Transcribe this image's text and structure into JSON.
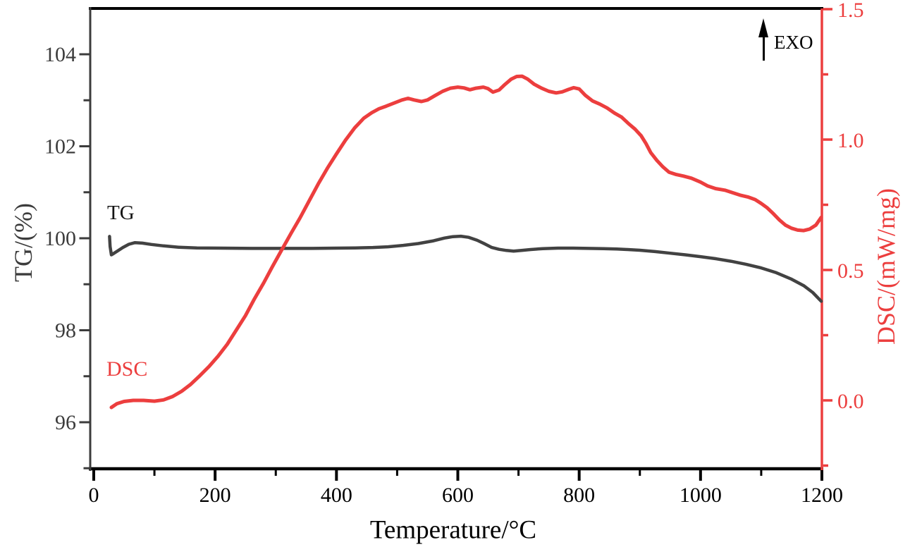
{
  "figure": {
    "background": "#ffffff",
    "annotations": {
      "tg_curve_label": "TG",
      "dsc_curve_label": "DSC",
      "exo_label": "EXO"
    },
    "colors": {
      "tg_curve": "#424242",
      "dsc_curve": "#ec3e3e",
      "left_axis": "#3c3c3c",
      "bottom_axis": "#000000",
      "right_axis": "#ec3e3e"
    }
  },
  "chart_data": {
    "type": "line",
    "title": "",
    "grid": false,
    "legend_position": "none",
    "x_axis": {
      "label": "Temperature/°C",
      "range": [
        0,
        1200
      ],
      "major_ticks": [
        0,
        200,
        400,
        600,
        800,
        1000,
        1200
      ],
      "minor_ticks": [
        100,
        300,
        500,
        700,
        900,
        1100
      ],
      "color": "#000000"
    },
    "left_axis": {
      "label": "TG/(%)",
      "range": [
        94.9,
        105.0
      ],
      "major_ticks": [
        96,
        98,
        100,
        102,
        104
      ],
      "minor_ticks": [
        95,
        97,
        99,
        101,
        103
      ],
      "color": "#3c3c3c"
    },
    "right_axis": {
      "label": "DSC/(mW/mg)",
      "range": [
        -0.26,
        1.5
      ],
      "major_ticks": [
        0.0,
        0.5,
        1.0,
        1.5
      ],
      "major_tick_labels": [
        "0.0",
        "0.5",
        "1.0",
        "1.5"
      ],
      "minor_ticks": [
        -0.25,
        0.25,
        0.75,
        1.25
      ],
      "color": "#ec3e3e"
    },
    "series": [
      {
        "name": "TG",
        "axis": "left",
        "color": "#424242",
        "points": [
          [
            26,
            100.04
          ],
          [
            27,
            99.82
          ],
          [
            29,
            99.64
          ],
          [
            33,
            99.67
          ],
          [
            40,
            99.73
          ],
          [
            48,
            99.8
          ],
          [
            58,
            99.87
          ],
          [
            68,
            99.905
          ],
          [
            80,
            99.895
          ],
          [
            95,
            99.865
          ],
          [
            115,
            99.835
          ],
          [
            140,
            99.805
          ],
          [
            170,
            99.79
          ],
          [
            210,
            99.785
          ],
          [
            260,
            99.78
          ],
          [
            310,
            99.78
          ],
          [
            360,
            99.78
          ],
          [
            400,
            99.785
          ],
          [
            430,
            99.79
          ],
          [
            460,
            99.8
          ],
          [
            485,
            99.815
          ],
          [
            510,
            99.845
          ],
          [
            535,
            99.885
          ],
          [
            560,
            99.945
          ],
          [
            578,
            100.005
          ],
          [
            592,
            100.035
          ],
          [
            605,
            100.045
          ],
          [
            618,
            100.02
          ],
          [
            632,
            99.955
          ],
          [
            645,
            99.875
          ],
          [
            656,
            99.8
          ],
          [
            668,
            99.76
          ],
          [
            680,
            99.735
          ],
          [
            692,
            99.72
          ],
          [
            705,
            99.735
          ],
          [
            720,
            99.755
          ],
          [
            740,
            99.775
          ],
          [
            765,
            99.785
          ],
          [
            790,
            99.785
          ],
          [
            815,
            99.78
          ],
          [
            840,
            99.775
          ],
          [
            862,
            99.765
          ],
          [
            880,
            99.755
          ],
          [
            900,
            99.74
          ],
          [
            925,
            99.71
          ],
          [
            950,
            99.675
          ],
          [
            975,
            99.64
          ],
          [
            1000,
            99.6
          ],
          [
            1025,
            99.555
          ],
          [
            1050,
            99.5
          ],
          [
            1075,
            99.435
          ],
          [
            1100,
            99.355
          ],
          [
            1125,
            99.25
          ],
          [
            1150,
            99.11
          ],
          [
            1170,
            98.97
          ],
          [
            1185,
            98.82
          ],
          [
            1199,
            98.63
          ]
        ]
      },
      {
        "name": "DSC",
        "axis": "right",
        "color": "#ec3e3e",
        "points": [
          [
            29,
            -0.027
          ],
          [
            38,
            -0.013
          ],
          [
            50,
            -0.004
          ],
          [
            65,
            0.0
          ],
          [
            82,
            0.0
          ],
          [
            100,
            -0.003
          ],
          [
            115,
            0.002
          ],
          [
            130,
            0.015
          ],
          [
            145,
            0.035
          ],
          [
            160,
            0.062
          ],
          [
            175,
            0.095
          ],
          [
            190,
            0.13
          ],
          [
            205,
            0.17
          ],
          [
            220,
            0.215
          ],
          [
            235,
            0.27
          ],
          [
            250,
            0.325
          ],
          [
            265,
            0.39
          ],
          [
            280,
            0.45
          ],
          [
            295,
            0.515
          ],
          [
            310,
            0.578
          ],
          [
            325,
            0.64
          ],
          [
            340,
            0.7
          ],
          [
            355,
            0.765
          ],
          [
            370,
            0.83
          ],
          [
            385,
            0.89
          ],
          [
            400,
            0.945
          ],
          [
            415,
            0.998
          ],
          [
            430,
            1.045
          ],
          [
            445,
            1.082
          ],
          [
            458,
            1.103
          ],
          [
            470,
            1.118
          ],
          [
            482,
            1.128
          ],
          [
            495,
            1.14
          ],
          [
            508,
            1.152
          ],
          [
            518,
            1.158
          ],
          [
            528,
            1.152
          ],
          [
            540,
            1.146
          ],
          [
            550,
            1.152
          ],
          [
            562,
            1.168
          ],
          [
            575,
            1.185
          ],
          [
            588,
            1.197
          ],
          [
            600,
            1.201
          ],
          [
            610,
            1.198
          ],
          [
            620,
            1.191
          ],
          [
            630,
            1.197
          ],
          [
            642,
            1.201
          ],
          [
            650,
            1.195
          ],
          [
            658,
            1.182
          ],
          [
            668,
            1.19
          ],
          [
            678,
            1.212
          ],
          [
            688,
            1.232
          ],
          [
            697,
            1.242
          ],
          [
            706,
            1.243
          ],
          [
            715,
            1.232
          ],
          [
            726,
            1.212
          ],
          [
            738,
            1.197
          ],
          [
            750,
            1.185
          ],
          [
            762,
            1.179
          ],
          [
            772,
            1.183
          ],
          [
            782,
            1.192
          ],
          [
            791,
            1.199
          ],
          [
            800,
            1.194
          ],
          [
            810,
            1.17
          ],
          [
            822,
            1.148
          ],
          [
            834,
            1.136
          ],
          [
            846,
            1.121
          ],
          [
            858,
            1.102
          ],
          [
            870,
            1.086
          ],
          [
            881,
            1.062
          ],
          [
            892,
            1.04
          ],
          [
            902,
            1.015
          ],
          [
            910,
            0.985
          ],
          [
            918,
            0.95
          ],
          [
            928,
            0.92
          ],
          [
            938,
            0.895
          ],
          [
            948,
            0.875
          ],
          [
            960,
            0.866
          ],
          [
            972,
            0.86
          ],
          [
            985,
            0.852
          ],
          [
            1000,
            0.837
          ],
          [
            1012,
            0.822
          ],
          [
            1025,
            0.812
          ],
          [
            1040,
            0.806
          ],
          [
            1052,
            0.797
          ],
          [
            1065,
            0.787
          ],
          [
            1078,
            0.78
          ],
          [
            1090,
            0.77
          ],
          [
            1100,
            0.755
          ],
          [
            1110,
            0.738
          ],
          [
            1120,
            0.716
          ],
          [
            1130,
            0.692
          ],
          [
            1140,
            0.672
          ],
          [
            1150,
            0.66
          ],
          [
            1160,
            0.653
          ],
          [
            1170,
            0.651
          ],
          [
            1180,
            0.657
          ],
          [
            1190,
            0.672
          ],
          [
            1199,
            0.702
          ]
        ]
      }
    ]
  }
}
